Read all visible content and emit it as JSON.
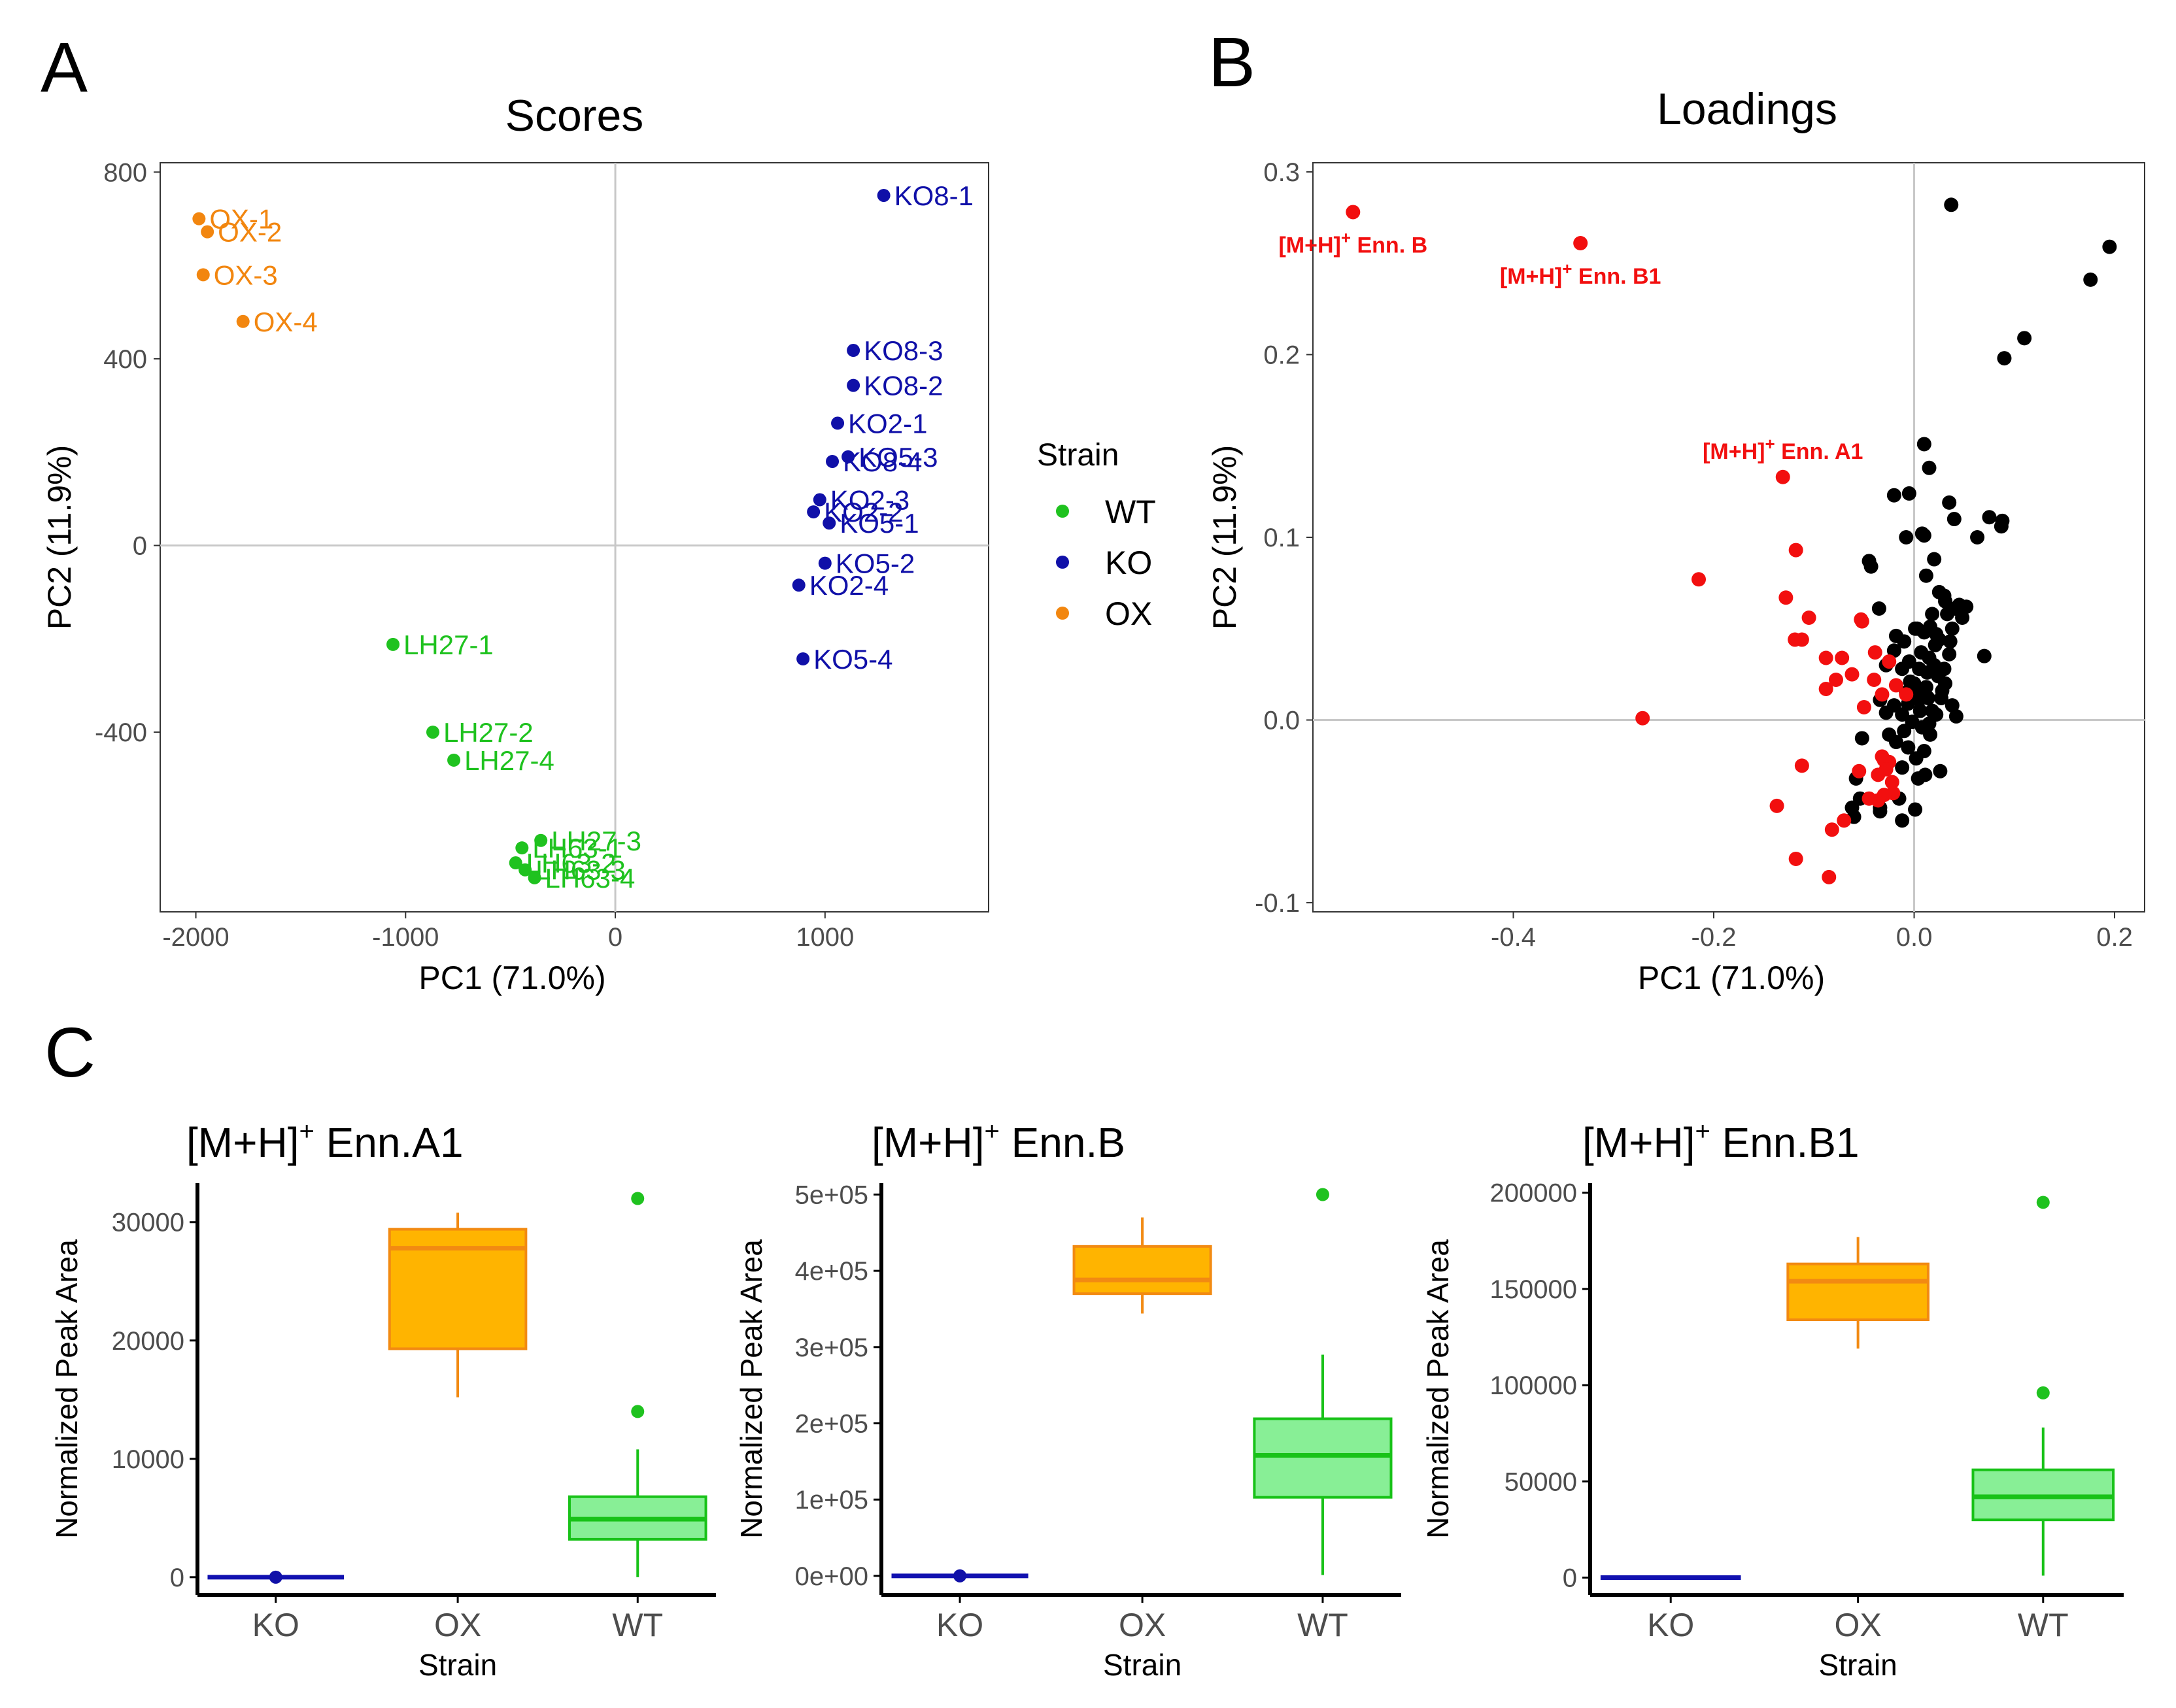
{
  "panel_letters": [
    "A",
    "B",
    "C"
  ],
  "colors": {
    "WT": "#1fc21f",
    "KO": "#1010a8",
    "OX": "#f2860f",
    "OX_box_fill": "#ffb400",
    "OX_box_line": "#f28a12",
    "WT_box_fill": "#88ef96",
    "WT_box_line": "#18c218",
    "KO_line": "#1111b0",
    "loading_red": "#f20f0f",
    "loading_black": "#000000"
  },
  "chart_data": [
    {
      "id": "scores",
      "type": "scatter",
      "title": "Scores",
      "xlabel": "PC1 (71.0%)",
      "ylabel": "PC2 (11.9%)",
      "xlim": [
        -2170,
        1780
      ],
      "ylim": [
        -785,
        820
      ],
      "xticks": [
        {
          "v": -2000,
          "label": "-2000"
        },
        {
          "v": -1000,
          "label": "-1000"
        },
        {
          "v": 0,
          "label": "0"
        },
        {
          "v": 1000,
          "label": "1000"
        }
      ],
      "yticks": [
        {
          "v": 800,
          "label": "800"
        },
        {
          "v": 400,
          "label": "400"
        },
        {
          "v": 0,
          "label": "0"
        },
        {
          "v": -400,
          "label": "-400"
        }
      ],
      "legend": {
        "title": "Strain",
        "entries": [
          "WT",
          "KO",
          "OX"
        ],
        "position": "right"
      },
      "points": [
        {
          "label": "OX-1",
          "group": "OX",
          "x": -1985,
          "y": 700
        },
        {
          "label": "OX-2",
          "group": "OX",
          "x": -1945,
          "y": 672
        },
        {
          "label": "OX-3",
          "group": "OX",
          "x": -1965,
          "y": 580
        },
        {
          "label": "OX-4",
          "group": "OX",
          "x": -1775,
          "y": 480
        },
        {
          "label": "KO8-1",
          "group": "KO",
          "x": 1280,
          "y": 750
        },
        {
          "label": "KO8-3",
          "group": "KO",
          "x": 1135,
          "y": 418
        },
        {
          "label": "KO8-2",
          "group": "KO",
          "x": 1135,
          "y": 343
        },
        {
          "label": "KO2-1",
          "group": "KO",
          "x": 1060,
          "y": 262
        },
        {
          "label": "KO5-3",
          "group": "KO",
          "x": 1110,
          "y": 190
        },
        {
          "label": "KO8-4",
          "group": "KO",
          "x": 1035,
          "y": 180
        },
        {
          "label": "KO2-3",
          "group": "KO",
          "x": 975,
          "y": 98
        },
        {
          "label": "KO2-2",
          "group": "KO",
          "x": 945,
          "y": 72
        },
        {
          "label": "KO5-1",
          "group": "KO",
          "x": 1020,
          "y": 48
        },
        {
          "label": "KO5-2",
          "group": "KO",
          "x": 1000,
          "y": -38
        },
        {
          "label": "KO2-4",
          "group": "KO",
          "x": 875,
          "y": -85
        },
        {
          "label": "KO5-4",
          "group": "KO",
          "x": 895,
          "y": -243
        },
        {
          "label": "LH27-1",
          "group": "WT",
          "x": -1060,
          "y": -212
        },
        {
          "label": "LH27-2",
          "group": "WT",
          "x": -870,
          "y": -400
        },
        {
          "label": "LH27-4",
          "group": "WT",
          "x": -770,
          "y": -460
        },
        {
          "label": "LH27-3",
          "group": "WT",
          "x": -355,
          "y": -632
        },
        {
          "label": "LH63-1",
          "group": "WT",
          "x": -445,
          "y": -648
        },
        {
          "label": "LH63-2",
          "group": "WT",
          "x": -475,
          "y": -680
        },
        {
          "label": "LH63-3",
          "group": "WT",
          "x": -430,
          "y": -695
        },
        {
          "label": "LH63-4",
          "group": "WT",
          "x": -385,
          "y": -712
        }
      ]
    },
    {
      "id": "loadings",
      "type": "scatter",
      "title": "Loadings",
      "xlabel": "PC1 (71.0%)",
      "ylabel": "PC2 (11.9%)",
      "xlim": [
        -0.6,
        0.23
      ],
      "ylim": [
        -0.105,
        0.305
      ],
      "xticks": [
        {
          "v": -0.4,
          "label": "-0.4"
        },
        {
          "v": -0.2,
          "label": "-0.2"
        },
        {
          "v": 0.0,
          "label": "0.0"
        },
        {
          "v": 0.2,
          "label": "0.2"
        }
      ],
      "yticks": [
        {
          "v": 0.3,
          "label": "0.3"
        },
        {
          "v": 0.2,
          "label": "0.2"
        },
        {
          "v": 0.1,
          "label": "0.1"
        },
        {
          "v": 0.0,
          "label": "0.0"
        },
        {
          "v": -0.1,
          "label": "-0.1"
        }
      ],
      "labeled_points": [
        {
          "prefix": "[M+H]",
          "sup": "+",
          "suffix": " Enn. B",
          "x": -0.56,
          "y": 0.278,
          "label_anchor": "below"
        },
        {
          "prefix": "[M+H]",
          "sup": "+",
          "suffix": " Enn. B1",
          "x": -0.333,
          "y": 0.261,
          "label_anchor": "below"
        },
        {
          "prefix": "[M+H]",
          "sup": "+",
          "suffix": " Enn. A1",
          "x": -0.131,
          "y": 0.133,
          "label_anchor": "above"
        }
      ],
      "red_points": [
        [
          -0.271,
          0.001
        ],
        [
          -0.215,
          0.077
        ],
        [
          -0.118,
          0.093
        ],
        [
          -0.128,
          0.067
        ],
        [
          -0.105,
          0.056
        ],
        [
          -0.119,
          0.044
        ],
        [
          -0.112,
          0.044
        ],
        [
          -0.088,
          0.034
        ],
        [
          -0.072,
          0.034
        ],
        [
          -0.052,
          0.054
        ],
        [
          -0.053,
          0.055
        ],
        [
          -0.088,
          0.017
        ],
        [
          -0.078,
          0.022
        ],
        [
          -0.062,
          0.025
        ],
        [
          -0.039,
          0.037
        ],
        [
          -0.025,
          0.032
        ],
        [
          -0.018,
          0.019
        ],
        [
          -0.008,
          0.014
        ],
        [
          -0.032,
          0.014
        ],
        [
          -0.04,
          0.022
        ],
        [
          -0.055,
          -0.028
        ],
        [
          -0.032,
          -0.02
        ],
        [
          -0.025,
          -0.023
        ],
        [
          -0.03,
          -0.022
        ],
        [
          -0.028,
          -0.027
        ],
        [
          -0.036,
          -0.03
        ],
        [
          -0.022,
          -0.034
        ],
        [
          -0.021,
          -0.04
        ],
        [
          -0.03,
          -0.041
        ],
        [
          -0.036,
          -0.044
        ],
        [
          -0.045,
          -0.043
        ],
        [
          -0.112,
          -0.025
        ],
        [
          -0.137,
          -0.047
        ],
        [
          -0.118,
          -0.076
        ],
        [
          -0.082,
          -0.06
        ],
        [
          -0.07,
          -0.055
        ],
        [
          -0.085,
          -0.086
        ],
        [
          -0.05,
          0.007
        ]
      ],
      "black_points": [
        [
          0.037,
          0.282
        ],
        [
          0.195,
          0.259
        ],
        [
          0.176,
          0.241
        ],
        [
          0.11,
          0.209
        ],
        [
          0.09,
          0.198
        ],
        [
          0.01,
          0.151
        ],
        [
          0.015,
          0.138
        ],
        [
          -0.005,
          0.124
        ],
        [
          -0.02,
          0.123
        ],
        [
          0.035,
          0.119
        ],
        [
          0.075,
          0.111
        ],
        [
          0.088,
          0.109
        ],
        [
          0.087,
          0.106
        ],
        [
          0.04,
          0.11
        ],
        [
          0.063,
          0.1
        ],
        [
          0.01,
          0.101
        ],
        [
          0.008,
          0.102
        ],
        [
          -0.008,
          0.1
        ],
        [
          -0.045,
          0.087
        ],
        [
          -0.043,
          0.084
        ],
        [
          0.02,
          0.088
        ],
        [
          0.012,
          0.079
        ],
        [
          0.03,
          0.068
        ],
        [
          0.025,
          0.07
        ],
        [
          0.031,
          0.065
        ],
        [
          0.052,
          0.062
        ],
        [
          0.041,
          0.061
        ],
        [
          0.045,
          0.063
        ],
        [
          -0.035,
          0.061
        ],
        [
          0.003,
          0.05
        ],
        [
          0.033,
          0.058
        ],
        [
          0.048,
          0.056
        ],
        [
          0.038,
          0.05
        ],
        [
          0.025,
          0.044
        ],
        [
          0.036,
          0.043
        ],
        [
          0.035,
          0.036
        ],
        [
          0.07,
          0.035
        ],
        [
          0.016,
          0.051
        ],
        [
          0.001,
          0.05
        ],
        [
          -0.01,
          0.043
        ],
        [
          0.015,
          0.034
        ],
        [
          0.021,
          0.041
        ],
        [
          -0.02,
          0.038
        ],
        [
          -0.005,
          0.032
        ],
        [
          0.005,
          0.028
        ],
        [
          0.013,
          0.026
        ],
        [
          0.024,
          0.024
        ],
        [
          0.031,
          0.02
        ],
        [
          0.027,
          0.012
        ],
        [
          0.038,
          0.008
        ],
        [
          0.042,
          0.002
        ],
        [
          -0.012,
          0.028
        ],
        [
          -0.004,
          0.021
        ],
        [
          0.004,
          0.016
        ],
        [
          0.014,
          0.012
        ],
        [
          0.022,
          0.003
        ],
        [
          -0.02,
          0.008
        ],
        [
          -0.012,
          0.003
        ],
        [
          -0.002,
          -0.001
        ],
        [
          0.008,
          -0.004
        ],
        [
          0.016,
          -0.008
        ],
        [
          -0.028,
          0.004
        ],
        [
          -0.018,
          -0.012
        ],
        [
          -0.006,
          -0.015
        ],
        [
          0.002,
          -0.021
        ],
        [
          -0.012,
          -0.026
        ],
        [
          0.004,
          -0.032
        ],
        [
          -0.015,
          -0.043
        ],
        [
          0.001,
          -0.049
        ],
        [
          -0.012,
          -0.055
        ],
        [
          -0.034,
          -0.048
        ],
        [
          -0.054,
          -0.043
        ],
        [
          -0.062,
          -0.048
        ],
        [
          -0.06,
          -0.053
        ],
        [
          -0.034,
          -0.05
        ],
        [
          -0.025,
          -0.008
        ],
        [
          0.011,
          -0.03
        ],
        [
          0.026,
          -0.028
        ],
        [
          0.005,
          0.011
        ],
        [
          -0.006,
          0.009
        ],
        [
          -0.052,
          -0.01
        ],
        [
          -0.034,
          0.011
        ],
        [
          0.018,
          0.005
        ],
        [
          -0.058,
          -0.032
        ],
        [
          0.01,
          -0.017
        ],
        [
          0.028,
          0.016
        ],
        [
          0.007,
          0.037
        ],
        [
          -0.018,
          0.046
        ],
        [
          0.018,
          0.058
        ],
        [
          0.02,
          0.03
        ],
        [
          0.0,
          0.02
        ],
        [
          0.012,
          0.018
        ],
        [
          0.03,
          0.028
        ],
        [
          -0.008,
          0.015
        ],
        [
          0.006,
          0.005
        ],
        [
          0.015,
          -0.002
        ],
        [
          -0.01,
          -0.006
        ],
        [
          0.01,
          0.048
        ],
        [
          -0.028,
          0.03
        ],
        [
          0.022,
          0.047
        ]
      ]
    },
    {
      "id": "enn_a1",
      "type": "box",
      "title_prefix": "[M+H]",
      "title_sup": "+",
      "title_suffix": " Enn.A1",
      "xlabel": "Strain",
      "ylabel": "Normalized Peak Area",
      "categories": [
        "KO",
        "OX",
        "WT"
      ],
      "ylim": [
        -1500,
        33300
      ],
      "yticks": [
        {
          "v": 0,
          "label": "0"
        },
        {
          "v": 10000,
          "label": "10000"
        },
        {
          "v": 20000,
          "label": "20000"
        },
        {
          "v": 30000,
          "label": "30000"
        }
      ],
      "boxes": [
        {
          "group": "KO",
          "q1": 0,
          "median": 0,
          "q3": 0,
          "lo": 0,
          "hi": 0,
          "outliers": [
            0
          ]
        },
        {
          "group": "OX",
          "q1": 19300,
          "median": 27800,
          "q3": 29400,
          "lo": 15200,
          "hi": 30800,
          "outliers": []
        },
        {
          "group": "WT",
          "q1": 3200,
          "median": 4900,
          "q3": 6800,
          "lo": 0,
          "hi": 10800,
          "outliers": [
            14000,
            32000
          ]
        }
      ]
    },
    {
      "id": "enn_b",
      "type": "box",
      "title_prefix": "[M+H]",
      "title_sup": "+",
      "title_suffix": " Enn.B",
      "xlabel": "Strain",
      "ylabel": "Normalized Peak Area",
      "categories": [
        "KO",
        "OX",
        "WT"
      ],
      "ylim": [
        -25000,
        515000
      ],
      "yticks": [
        {
          "v": 0,
          "label": "0e+00"
        },
        {
          "v": 100000,
          "label": "1e+05"
        },
        {
          "v": 200000,
          "label": "2e+05"
        },
        {
          "v": 300000,
          "label": "3e+05"
        },
        {
          "v": 400000,
          "label": "4e+05"
        },
        {
          "v": 500000,
          "label": "5e+05"
        }
      ],
      "boxes": [
        {
          "group": "KO",
          "q1": 0,
          "median": 0,
          "q3": 0,
          "lo": 0,
          "hi": 0,
          "outliers": [
            0
          ]
        },
        {
          "group": "OX",
          "q1": 370000,
          "median": 388000,
          "q3": 432000,
          "lo": 344000,
          "hi": 470000,
          "outliers": []
        },
        {
          "group": "WT",
          "q1": 103000,
          "median": 158000,
          "q3": 206000,
          "lo": 1000,
          "hi": 290000,
          "outliers": [
            500000
          ]
        }
      ]
    },
    {
      "id": "enn_b1",
      "type": "box",
      "title_prefix": "[M+H]",
      "title_sup": "+",
      "title_suffix": " Enn.B1",
      "xlabel": "Strain",
      "ylabel": "Normalized Peak Area",
      "categories": [
        "KO",
        "OX",
        "WT"
      ],
      "ylim": [
        -9000,
        205000
      ],
      "yticks": [
        {
          "v": 0,
          "label": "0"
        },
        {
          "v": 50000,
          "label": "50000"
        },
        {
          "v": 100000,
          "label": "100000"
        },
        {
          "v": 150000,
          "label": "150000"
        },
        {
          "v": 200000,
          "label": "200000"
        }
      ],
      "boxes": [
        {
          "group": "KO",
          "q1": 0,
          "median": 0,
          "q3": 0,
          "lo": 0,
          "hi": 0,
          "outliers": []
        },
        {
          "group": "OX",
          "q1": 134000,
          "median": 154000,
          "q3": 163000,
          "lo": 119000,
          "hi": 177000,
          "outliers": []
        },
        {
          "group": "WT",
          "q1": 30000,
          "median": 42000,
          "q3": 56000,
          "lo": 1000,
          "hi": 78000,
          "outliers": [
            96000,
            195000
          ]
        }
      ]
    }
  ]
}
